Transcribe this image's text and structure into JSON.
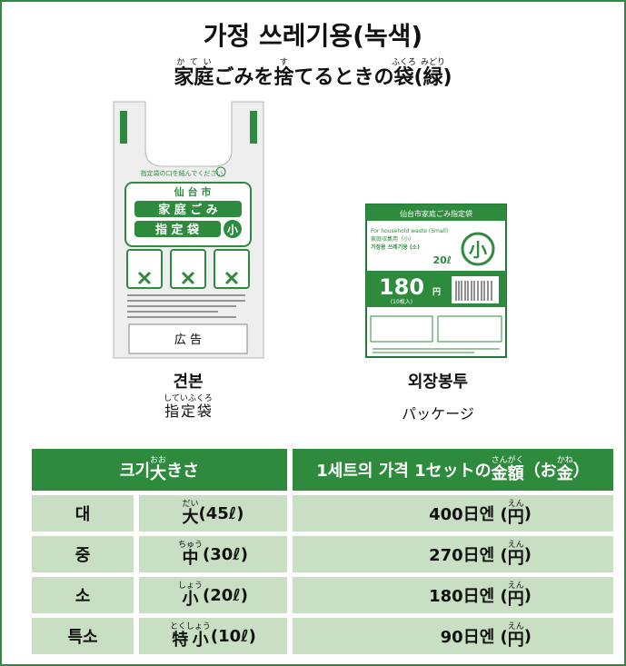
{
  "header": {
    "title": "가정 쓰레기용(녹색)",
    "subtitle": [
      {
        "base": "家庭",
        "ruby": "かてい"
      },
      {
        "base": "ごみを"
      },
      {
        "base": "捨",
        "ruby": "す"
      },
      {
        "base": "てるときの"
      },
      {
        "base": "袋",
        "ruby": "ふくろ"
      },
      {
        "base": "("
      },
      {
        "base": "緑",
        "ruby": "みどり"
      },
      {
        "base": ")"
      }
    ]
  },
  "bag": {
    "notice": "指定袋の口を結んでください",
    "city": "仙 台 市",
    "line1": "家 庭 ご み",
    "line2": "指 定 袋",
    "size": "小",
    "ad": "広 告"
  },
  "package": {
    "header": "仙台市家庭ごみ指定袋",
    "line1": "For household waste (Small)",
    "line2": "家庭収集用（小）",
    "line3": "가정용 쓰레기용 (소)",
    "volume": "20ℓ",
    "size": "小",
    "price": "180",
    "yen": "円",
    "count": "(10枚入)"
  },
  "captions": [
    {
      "korean": "견본",
      "japanese": [
        {
          "base": "指定袋",
          "ruby": "していふくろ"
        }
      ]
    },
    {
      "korean": "외장봉투",
      "japanese": [
        {
          "base": "パッケージ"
        }
      ]
    }
  ],
  "table": {
    "header": [
      [
        {
          "base": "크기 "
        },
        {
          "base": "大",
          "ruby": "おお"
        },
        {
          "base": "きさ"
        }
      ],
      [
        {
          "base": "1세트의 가격  1セットの"
        },
        {
          "base": "金額",
          "ruby": "さんがく"
        },
        {
          "base": "（お"
        },
        {
          "base": "金",
          "ruby": "かね"
        },
        {
          "base": "）"
        }
      ]
    ],
    "rows": [
      [
        "대",
        [
          {
            "base": "大",
            "ruby": "だい"
          },
          {
            "base": "(45ℓ)"
          }
        ],
        [
          {
            "base": "400日엔 ("
          },
          {
            "base": "円",
            "ruby": "えん"
          },
          {
            "base": ")"
          }
        ]
      ],
      [
        "중",
        [
          {
            "base": "中",
            "ruby": "ちゅう"
          },
          {
            "base": "(30ℓ)"
          }
        ],
        [
          {
            "base": "270日엔 ("
          },
          {
            "base": "円",
            "ruby": "えん"
          },
          {
            "base": ")"
          }
        ]
      ],
      [
        "소",
        [
          {
            "base": "小",
            "ruby": "しょう"
          },
          {
            "base": "(20ℓ)"
          }
        ],
        [
          {
            "base": "180日엔 ("
          },
          {
            "base": "円",
            "ruby": "えん"
          },
          {
            "base": ")"
          }
        ]
      ],
      [
        "특소",
        [
          {
            "base": "特小",
            "ruby": "とくしょう"
          },
          {
            "base": "(10ℓ)"
          }
        ],
        [
          {
            "base": "90日엔 ("
          },
          {
            "base": "円",
            "ruby": "えん"
          },
          {
            "base": ")"
          }
        ]
      ]
    ]
  }
}
